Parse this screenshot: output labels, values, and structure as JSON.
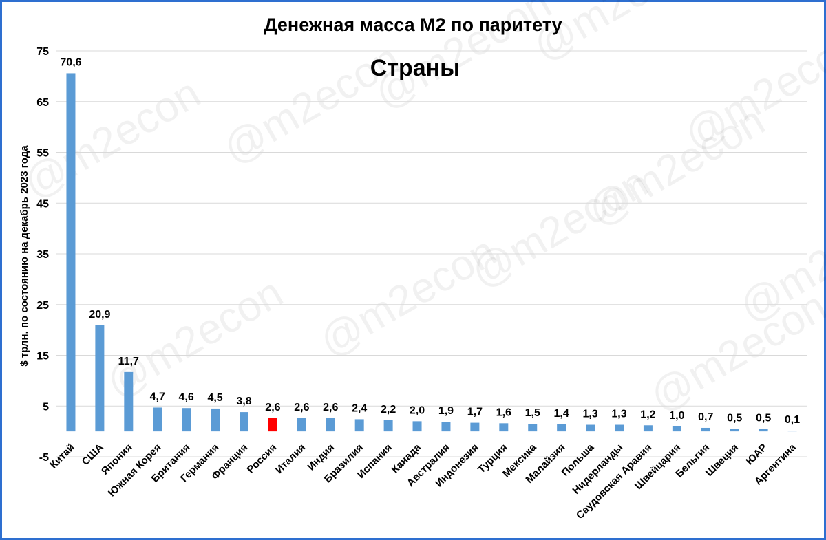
{
  "watermark": "@m2econ",
  "chart_data": {
    "type": "bar",
    "title": "Денежная масса М2 по паритету",
    "subtitle": "Страны",
    "ylabel": "$ трлн. по состоянию на декабрь 2023 года",
    "xlabel": "",
    "ylim": [
      -5,
      75
    ],
    "yticks": [
      75,
      65,
      55,
      45,
      35,
      25,
      15,
      5,
      -5
    ],
    "grid": true,
    "bar_color": "#5b9bd5",
    "highlight_color": "#ff0000",
    "highlight_category": "Россия",
    "categories": [
      "Китай",
      "США",
      "Япония",
      "Южная Корея",
      "Британия",
      "Германия",
      "Франция",
      "Россия",
      "Италия",
      "Индия",
      "Бразилия",
      "Испания",
      "Канада",
      "Австралия",
      "Индонезия",
      "Турция",
      "Мексика",
      "Малайзия",
      "Польша",
      "Нидерланды",
      "Саудовская Аравия",
      "Швейцария",
      "Бельгия",
      "Швеция",
      "ЮАР",
      "Аргентина"
    ],
    "values": [
      70.6,
      20.9,
      11.7,
      4.7,
      4.6,
      4.5,
      3.8,
      2.6,
      2.6,
      2.6,
      2.4,
      2.2,
      2.0,
      1.9,
      1.7,
      1.6,
      1.5,
      1.4,
      1.3,
      1.3,
      1.2,
      1.0,
      0.7,
      0.5,
      0.5,
      0.1
    ],
    "data_labels": [
      "70,6",
      "20,9",
      "11,7",
      "4,7",
      "4,6",
      "4,5",
      "3,8",
      "2,6",
      "2,6",
      "2,6",
      "2,4",
      "2,2",
      "2,0",
      "1,9",
      "1,7",
      "1,6",
      "1,5",
      "1,4",
      "1,3",
      "1,3",
      "1,2",
      "1,0",
      "0,7",
      "0,5",
      "0,5",
      "0,1"
    ]
  }
}
